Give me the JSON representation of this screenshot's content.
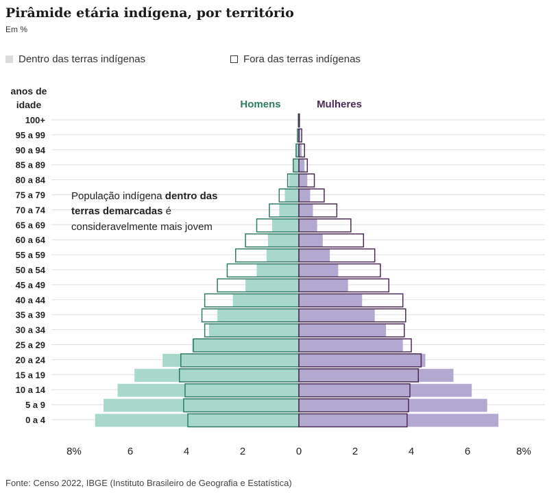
{
  "title": "Pirâmide etária indígena, por território",
  "subtitle": "Em %",
  "legend": {
    "inside_label": "Dentro das terras indígenas",
    "outside_label": "Fora das terras indígenas"
  },
  "axis": {
    "age_title_line1": "anos de",
    "age_title_line2": "idade",
    "men_label": "Homens",
    "women_label": "Mulheres"
  },
  "annotation": {
    "line1_normal": "População indígena ",
    "line1_bold": "dentro das",
    "line2_bold": "terras demarcadas",
    "line2_normal": " é",
    "line3": "consideravelmente mais jovem"
  },
  "source": "Fonte: Censo 2022, IBGE (Instituto Brasileiro de Geografia e Estatística)",
  "colors": {
    "men_inside": "#a8d8cc",
    "women_inside": "#b3a9d0",
    "men_outline": "#2f7a63",
    "women_outline": "#4b2a55",
    "men_text": "#2f7a63",
    "women_text": "#4b2a55",
    "grid": "#dddddd"
  },
  "chart_data": {
    "type": "bar",
    "orientation": "horizontal-diverging",
    "xlim": [
      -8,
      8
    ],
    "xticks": [
      {
        "value": -8,
        "label": "8%"
      },
      {
        "value": -6,
        "label": "6"
      },
      {
        "value": -4,
        "label": "4"
      },
      {
        "value": -2,
        "label": "2"
      },
      {
        "value": 0,
        "label": "0"
      },
      {
        "value": 2,
        "label": "2"
      },
      {
        "value": 4,
        "label": "4"
      },
      {
        "value": 6,
        "label": "6"
      },
      {
        "value": 8,
        "label": "8%"
      }
    ],
    "categories": [
      "100+",
      "95 a 99",
      "90 a 94",
      "85 a 89",
      "80 a 84",
      "75 a 79",
      "70 a 74",
      "65 a 69",
      "60 a 64",
      "55 a 59",
      "50 a 54",
      "45 a 49",
      "40 a 44",
      "35 a 39",
      "30 a 34",
      "25 a 29",
      "20 a 24",
      "15 a 19",
      "10 a 14",
      "5 a 9",
      "0 a 4"
    ],
    "series": [
      {
        "name": "Homens - Dentro das terras indígenas",
        "values": [
          0.02,
          0.05,
          0.1,
          0.2,
          0.35,
          0.5,
          0.7,
          0.95,
          1.1,
          1.15,
          1.5,
          1.9,
          2.35,
          2.9,
          3.2,
          3.8,
          4.85,
          5.85,
          6.45,
          6.95,
          7.25
        ]
      },
      {
        "name": "Mulheres - Dentro das terras indígenas",
        "values": [
          0.02,
          0.05,
          0.1,
          0.2,
          0.3,
          0.4,
          0.5,
          0.65,
          0.85,
          1.1,
          1.4,
          1.75,
          2.25,
          2.7,
          3.1,
          3.7,
          4.5,
          5.5,
          6.15,
          6.7,
          7.1
        ]
      },
      {
        "name": "Homens - Fora das terras indígenas",
        "values": [
          0.02,
          0.05,
          0.1,
          0.2,
          0.4,
          0.7,
          1.05,
          1.5,
          1.9,
          2.25,
          2.55,
          2.9,
          3.35,
          3.45,
          3.35,
          3.75,
          4.2,
          4.25,
          4.05,
          4.1,
          3.95
        ]
      },
      {
        "name": "Mulheres - Fora das terras indígenas",
        "values": [
          0.02,
          0.1,
          0.2,
          0.3,
          0.55,
          0.9,
          1.35,
          1.85,
          2.3,
          2.7,
          2.9,
          3.2,
          3.7,
          3.8,
          3.75,
          4.0,
          4.35,
          4.25,
          3.95,
          3.9,
          3.85
        ]
      }
    ]
  }
}
